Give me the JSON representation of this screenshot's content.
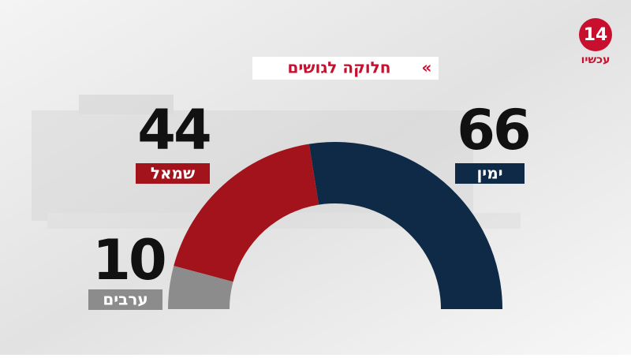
{
  "chart_data": {
    "type": "semi_donut",
    "title": "חלוקה לגושים",
    "categories": [
      "ימין",
      "שמאל",
      "ערבים"
    ],
    "values": [
      66,
      44,
      10
    ],
    "colors": [
      "#0f2a47",
      "#a3131b",
      "#8c8c8c"
    ]
  },
  "logo": {
    "number": "14",
    "text": "עכשיו"
  }
}
